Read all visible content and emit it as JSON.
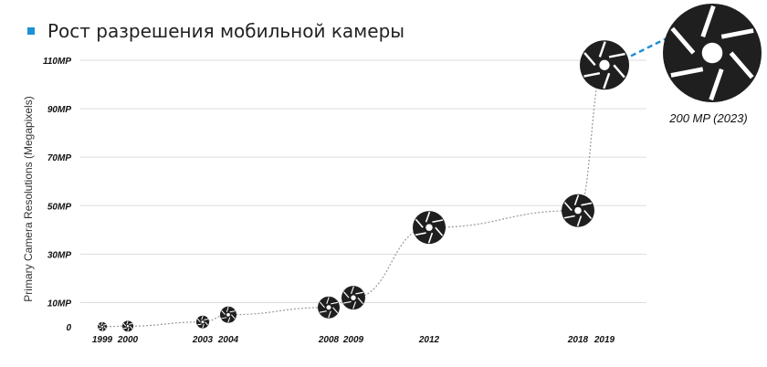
{
  "header": {
    "title": "Рост разрешения мобильной камеры"
  },
  "chart_data": {
    "type": "scatter",
    "title": "Рост разрешения мобильной камеры",
    "ylabel": "Primary Camera Resolutions (Megapixels)",
    "xlabel": "",
    "ylim": [
      0,
      110
    ],
    "x_ticks": [
      "1999",
      "2000",
      "2003",
      "2004",
      "2008",
      "2009",
      "2012",
      "2018",
      "2019"
    ],
    "y_ticks": [
      {
        "value": 0,
        "label": "0"
      },
      {
        "value": 10,
        "label": "10MP"
      },
      {
        "value": 30,
        "label": "30MP"
      },
      {
        "value": 50,
        "label": "50MP"
      },
      {
        "value": 70,
        "label": "70MP"
      },
      {
        "value": 90,
        "label": "90MP"
      },
      {
        "value": 110,
        "label": "110MP"
      }
    ],
    "points": [
      {
        "year": "1999",
        "mp": 0.1
      },
      {
        "year": "2000",
        "mp": 0.3
      },
      {
        "year": "2003",
        "mp": 2
      },
      {
        "year": "2004",
        "mp": 5
      },
      {
        "year": "2008",
        "mp": 8
      },
      {
        "year": "2009",
        "mp": 12
      },
      {
        "year": "2012",
        "mp": 41
      },
      {
        "year": "2018",
        "mp": 48
      },
      {
        "year": "2019",
        "mp": 108
      }
    ],
    "annotation": {
      "label": "200 MP (2023)",
      "value": 200,
      "year": "2023"
    },
    "grid": "horizontal",
    "colors": {
      "marker": "#1f1f1f",
      "curve": "#9a9a9a",
      "callout_line": "#1e90d6",
      "grid": "#dddddd"
    }
  }
}
